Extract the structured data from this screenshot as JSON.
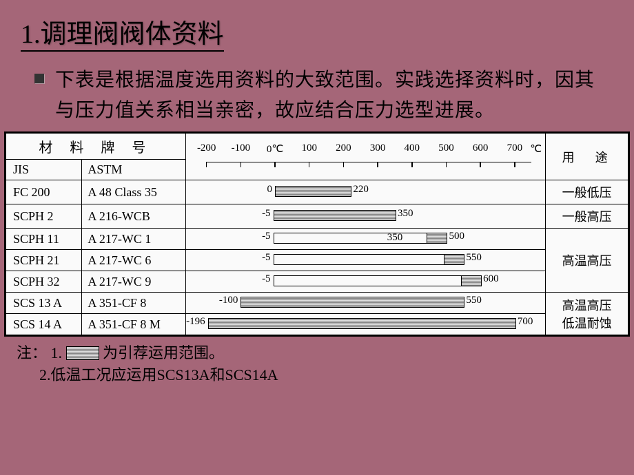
{
  "title": "1.调理阀阀体资料",
  "bullet": "下表是根据温度选用资料的大致范围。实践选择资料时，因其与压力值关系相当亲密，故应结合压力选型进展。",
  "headers": {
    "material": "材 料 牌 号",
    "jis": "JIS",
    "astm": "ASTM",
    "use": "用　途",
    "unit": "℃"
  },
  "axis": {
    "min": -200,
    "max": 750,
    "ticks": [
      -200,
      -100,
      0,
      100,
      200,
      300,
      400,
      500,
      600,
      700
    ],
    "labels": [
      "-200",
      "-100",
      "0℃",
      "100",
      "200",
      "300",
      "400",
      "500",
      "600",
      "700"
    ]
  },
  "rows": [
    {
      "jis": "FC 200",
      "astm": "A 48 Class 35",
      "segments": [
        {
          "type": "bar",
          "from": 0,
          "to": 220
        }
      ],
      "left_label": "0",
      "right_label": "220",
      "use": "一般低压"
    },
    {
      "jis": "SCPH 2",
      "astm": "A 216-WCB",
      "segments": [
        {
          "type": "bar",
          "from": -5,
          "to": 350
        }
      ],
      "left_label": "-5",
      "right_label": "350",
      "use": "一般高压"
    },
    {
      "jis": "SCPH 11",
      "astm": "A 217-WC 1",
      "segments": [
        {
          "type": "open",
          "from": -5,
          "to": 500,
          "hatchRight": true
        }
      ],
      "left_label": "-5",
      "mid_label": "350",
      "mid_at": 350,
      "right_label": "500",
      "use_group_start": true,
      "use": "高温高压"
    },
    {
      "jis": "SCPH 21",
      "astm": "A 217-WC 6",
      "segments": [
        {
          "type": "open",
          "from": -5,
          "to": 550,
          "hatchRight": true
        }
      ],
      "left_label": "-5",
      "right_label": "550"
    },
    {
      "jis": "SCPH 32",
      "astm": "A 217-WC 9",
      "segments": [
        {
          "type": "open",
          "from": -5,
          "to": 600,
          "hatchRight": true
        }
      ],
      "left_label": "-5",
      "right_label": "600",
      "use_group_end": true
    },
    {
      "jis": "SCS 13 A",
      "astm": "A 351-CF 8",
      "segments": [
        {
          "type": "bar",
          "from": -100,
          "to": 550
        }
      ],
      "left_label": "-100",
      "right_label": "550",
      "use_group_start": true,
      "use": "高温高压\n低温耐蚀"
    },
    {
      "jis": "SCS 14 A",
      "astm": "A 351-CF 8 M",
      "segments": [
        {
          "type": "bar",
          "from": -196,
          "to": 700
        }
      ],
      "left_label": "-196",
      "right_label": "700",
      "use_group_end": true
    }
  ],
  "notes": {
    "prefix": "注：",
    "n1a": "1.",
    "n1b": "为引荐运用范围。",
    "n2": "2.低温工况应运用SCS13A和SCS14A"
  },
  "style": {
    "bg": "#a56678",
    "chart_left_pad": 30,
    "chart_right_pad": 20
  }
}
